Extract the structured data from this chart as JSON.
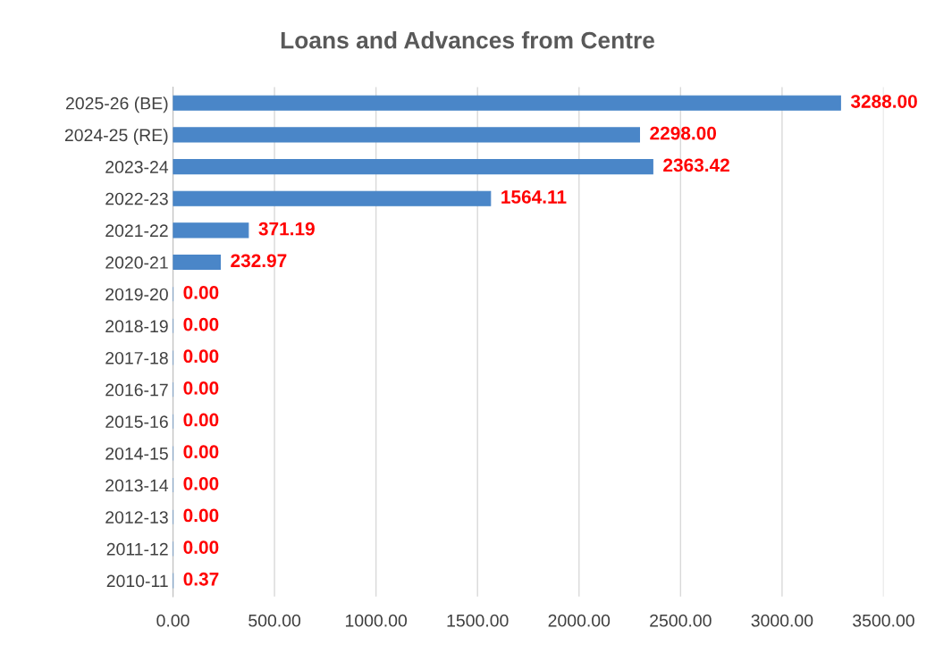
{
  "chart_data": {
    "type": "bar",
    "orientation": "horizontal",
    "title": "Loans and Advances from Centre",
    "categories": [
      "2025-26 (BE)",
      "2024-25 (RE)",
      "2023-24",
      "2022-23",
      "2021-22",
      "2020-21",
      "2019-20",
      "2018-19",
      "2017-18",
      "2016-17",
      "2015-16",
      "2014-15",
      "2013-14",
      "2012-13",
      "2011-12",
      "2010-11"
    ],
    "values": [
      3288.0,
      2298.0,
      2363.42,
      1564.11,
      371.19,
      232.97,
      0,
      0,
      0,
      0,
      0,
      0,
      0,
      0,
      0,
      0.37
    ],
    "value_labels": [
      "3288.00",
      "2298.00",
      "2363.42",
      "1564.11",
      "371.19",
      "232.97",
      "0.00",
      "0.00",
      "0.00",
      "0.00",
      "0.00",
      "0.00",
      "0.00",
      "0.00",
      "0.00",
      "0.37"
    ],
    "color": "#4a86c8",
    "xlim": [
      0,
      3500
    ],
    "xticks": [
      {
        "value": 0,
        "label": "0.00"
      },
      {
        "value": 500,
        "label": "500.00"
      },
      {
        "value": 1000,
        "label": "1000.00"
      },
      {
        "value": 1500,
        "label": "1500.00"
      },
      {
        "value": 2000,
        "label": "2000.00"
      },
      {
        "value": 2500,
        "label": "2500.00"
      },
      {
        "value": 3000,
        "label": "3000.00"
      },
      {
        "value": 3500,
        "label": "3500.00"
      }
    ],
    "grid": "x",
    "legend": false
  }
}
